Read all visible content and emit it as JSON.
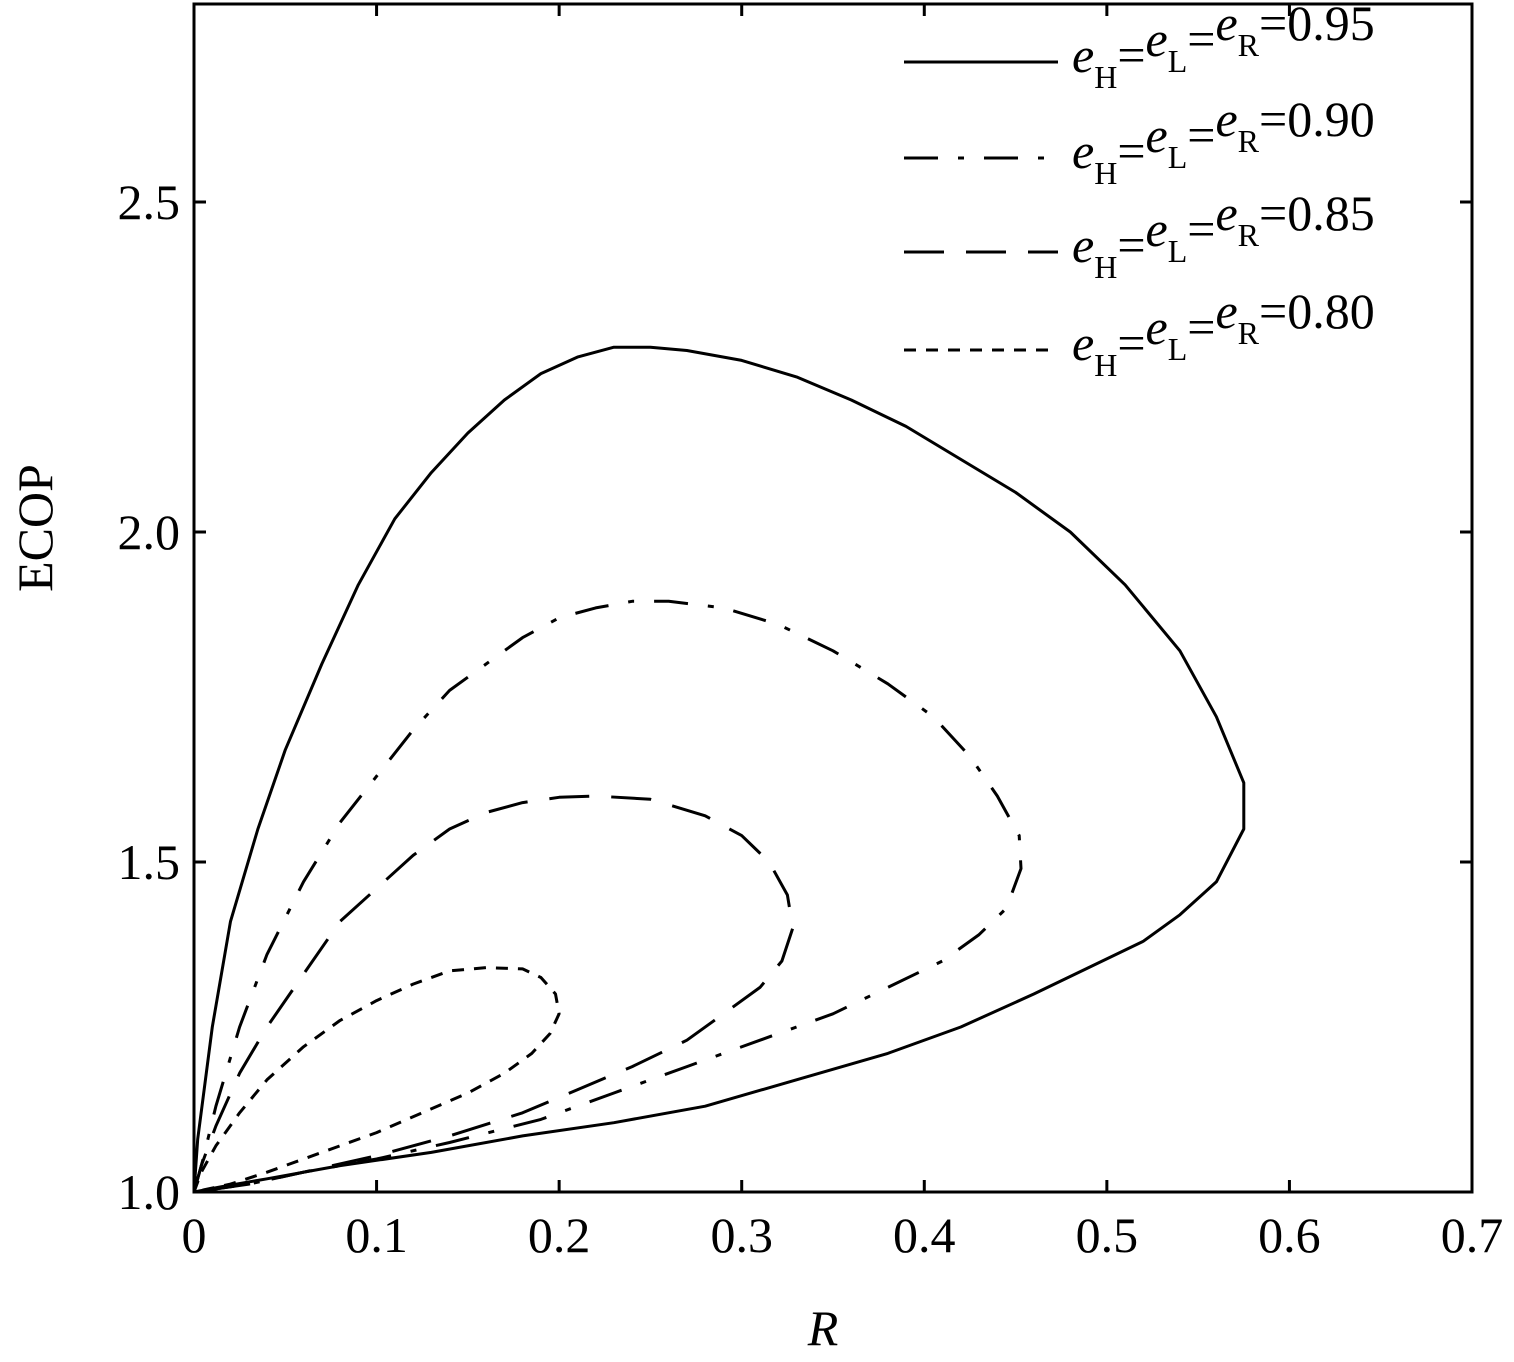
{
  "chart_data": {
    "type": "line",
    "title": "",
    "xlabel": "R",
    "ylabel": "ECOP",
    "xlim": [
      0,
      0.7
    ],
    "ylim": [
      1.0,
      2.8
    ],
    "xticks": [
      0,
      0.1,
      0.2,
      0.3,
      0.4,
      0.5,
      0.6,
      0.7
    ],
    "xtick_labels": [
      "0",
      "0.1",
      "0.2",
      "0.3",
      "0.4",
      "0.5",
      "0.6",
      "0.7"
    ],
    "yticks": [
      1.0,
      1.5,
      2.0,
      2.5
    ],
    "ytick_labels": [
      "1.0",
      "1.5",
      "2.0",
      "2.5"
    ],
    "grid": false,
    "legend_position": "top-right",
    "series": [
      {
        "name": "eH=eL=eR=0.95",
        "legend_parts": [
          "e",
          "H",
          "=",
          "e",
          "L",
          "=",
          "e",
          "R",
          "=0.95"
        ],
        "style": "solid",
        "points": [
          [
            0,
            1.0
          ],
          [
            0.002,
            1.08
          ],
          [
            0.01,
            1.25
          ],
          [
            0.02,
            1.41
          ],
          [
            0.035,
            1.55
          ],
          [
            0.05,
            1.67
          ],
          [
            0.07,
            1.8
          ],
          [
            0.09,
            1.92
          ],
          [
            0.11,
            2.02
          ],
          [
            0.13,
            2.09
          ],
          [
            0.15,
            2.15
          ],
          [
            0.17,
            2.2
          ],
          [
            0.19,
            2.24
          ],
          [
            0.21,
            2.265
          ],
          [
            0.23,
            2.28
          ],
          [
            0.25,
            2.28
          ],
          [
            0.27,
            2.275
          ],
          [
            0.3,
            2.26
          ],
          [
            0.33,
            2.235
          ],
          [
            0.36,
            2.2
          ],
          [
            0.39,
            2.16
          ],
          [
            0.42,
            2.11
          ],
          [
            0.45,
            2.06
          ],
          [
            0.48,
            2.0
          ],
          [
            0.51,
            1.92
          ],
          [
            0.54,
            1.82
          ],
          [
            0.56,
            1.72
          ],
          [
            0.575,
            1.62
          ],
          [
            0.575,
            1.55
          ],
          [
            0.56,
            1.47
          ],
          [
            0.54,
            1.42
          ],
          [
            0.52,
            1.38
          ],
          [
            0.49,
            1.34
          ],
          [
            0.46,
            1.3
          ],
          [
            0.42,
            1.25
          ],
          [
            0.38,
            1.21
          ],
          [
            0.33,
            1.17
          ],
          [
            0.28,
            1.13
          ],
          [
            0.23,
            1.105
          ],
          [
            0.18,
            1.085
          ],
          [
            0.13,
            1.06
          ],
          [
            0.08,
            1.04
          ],
          [
            0.04,
            1.02
          ],
          [
            0.015,
            1.008
          ],
          [
            0,
            1.0
          ]
        ]
      },
      {
        "name": "eH=eL=eR=0.90",
        "legend_parts": [
          "e",
          "H",
          "=",
          "e",
          "L",
          "=",
          "e",
          "R",
          "=0.90"
        ],
        "style": "dash-dot",
        "points": [
          [
            0,
            1.0
          ],
          [
            0.005,
            1.05
          ],
          [
            0.012,
            1.13
          ],
          [
            0.025,
            1.25
          ],
          [
            0.04,
            1.36
          ],
          [
            0.06,
            1.47
          ],
          [
            0.08,
            1.56
          ],
          [
            0.1,
            1.63
          ],
          [
            0.12,
            1.7
          ],
          [
            0.14,
            1.76
          ],
          [
            0.16,
            1.8
          ],
          [
            0.18,
            1.84
          ],
          [
            0.2,
            1.87
          ],
          [
            0.22,
            1.885
          ],
          [
            0.24,
            1.895
          ],
          [
            0.26,
            1.895
          ],
          [
            0.29,
            1.885
          ],
          [
            0.32,
            1.86
          ],
          [
            0.35,
            1.82
          ],
          [
            0.38,
            1.77
          ],
          [
            0.405,
            1.72
          ],
          [
            0.425,
            1.66
          ],
          [
            0.44,
            1.6
          ],
          [
            0.452,
            1.54
          ],
          [
            0.453,
            1.49
          ],
          [
            0.445,
            1.43
          ],
          [
            0.43,
            1.39
          ],
          [
            0.41,
            1.35
          ],
          [
            0.38,
            1.31
          ],
          [
            0.35,
            1.27
          ],
          [
            0.31,
            1.23
          ],
          [
            0.27,
            1.19
          ],
          [
            0.23,
            1.15
          ],
          [
            0.19,
            1.11
          ],
          [
            0.14,
            1.075
          ],
          [
            0.1,
            1.05
          ],
          [
            0.06,
            1.03
          ],
          [
            0.03,
            1.012
          ],
          [
            0,
            1.0
          ]
        ]
      },
      {
        "name": "eH=eL=eR=0.85",
        "legend_parts": [
          "e",
          "H",
          "=",
          "e",
          "L",
          "=",
          "e",
          "R",
          "=0.85"
        ],
        "style": "long-dash",
        "points": [
          [
            0,
            1.0
          ],
          [
            0.004,
            1.04
          ],
          [
            0.012,
            1.1
          ],
          [
            0.025,
            1.18
          ],
          [
            0.04,
            1.25
          ],
          [
            0.06,
            1.33
          ],
          [
            0.08,
            1.41
          ],
          [
            0.1,
            1.46
          ],
          [
            0.12,
            1.51
          ],
          [
            0.14,
            1.55
          ],
          [
            0.16,
            1.575
          ],
          [
            0.18,
            1.59
          ],
          [
            0.2,
            1.598
          ],
          [
            0.22,
            1.6
          ],
          [
            0.25,
            1.595
          ],
          [
            0.28,
            1.57
          ],
          [
            0.3,
            1.54
          ],
          [
            0.315,
            1.5
          ],
          [
            0.325,
            1.45
          ],
          [
            0.328,
            1.4
          ],
          [
            0.322,
            1.35
          ],
          [
            0.31,
            1.31
          ],
          [
            0.29,
            1.27
          ],
          [
            0.27,
            1.23
          ],
          [
            0.24,
            1.19
          ],
          [
            0.21,
            1.155
          ],
          [
            0.18,
            1.12
          ],
          [
            0.14,
            1.085
          ],
          [
            0.1,
            1.055
          ],
          [
            0.06,
            1.03
          ],
          [
            0.03,
            1.012
          ],
          [
            0,
            1.0
          ]
        ]
      },
      {
        "name": "eH=eL=eR=0.80",
        "legend_parts": [
          "e",
          "H",
          "=",
          "e",
          "L",
          "=",
          "e",
          "R",
          "=0.80"
        ],
        "style": "short-dash",
        "points": [
          [
            0,
            1.0
          ],
          [
            0.004,
            1.03
          ],
          [
            0.012,
            1.07
          ],
          [
            0.025,
            1.12
          ],
          [
            0.04,
            1.17
          ],
          [
            0.06,
            1.22
          ],
          [
            0.08,
            1.26
          ],
          [
            0.1,
            1.29
          ],
          [
            0.12,
            1.315
          ],
          [
            0.14,
            1.335
          ],
          [
            0.16,
            1.34
          ],
          [
            0.18,
            1.338
          ],
          [
            0.19,
            1.325
          ],
          [
            0.198,
            1.3
          ],
          [
            0.2,
            1.27
          ],
          [
            0.195,
            1.24
          ],
          [
            0.185,
            1.21
          ],
          [
            0.17,
            1.18
          ],
          [
            0.15,
            1.15
          ],
          [
            0.125,
            1.12
          ],
          [
            0.1,
            1.09
          ],
          [
            0.07,
            1.06
          ],
          [
            0.04,
            1.03
          ],
          [
            0.02,
            1.012
          ],
          [
            0,
            1.0
          ]
        ]
      }
    ]
  }
}
